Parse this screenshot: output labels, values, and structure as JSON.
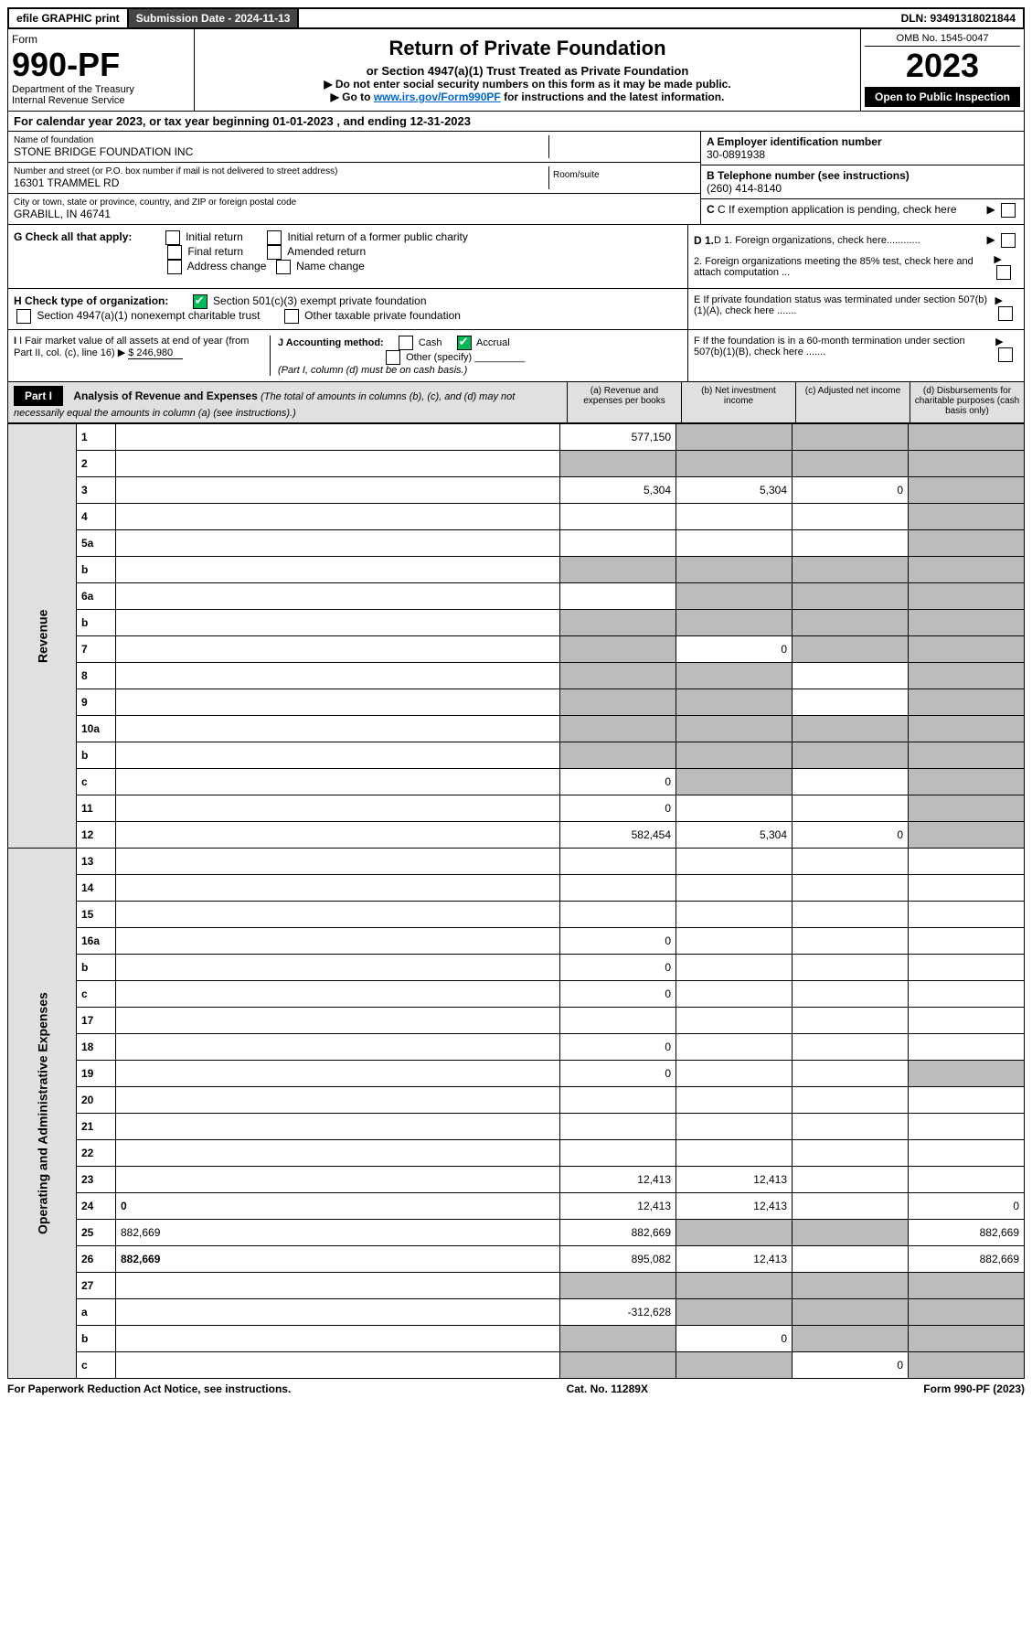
{
  "topbar": {
    "efile": "efile GRAPHIC print",
    "submission_label": "Submission Date - 2024-11-13",
    "dln": "DLN: 93491318021844"
  },
  "formhead": {
    "form_word": "Form",
    "form_number": "990-PF",
    "dept": "Department of the Treasury",
    "irs": "Internal Revenue Service",
    "title": "Return of Private Foundation",
    "subtitle": "or Section 4947(a)(1) Trust Treated as Private Foundation",
    "note1": "▶ Do not enter social security numbers on this form as it may be made public.",
    "note2_prefix": "▶ Go to ",
    "note2_link": "www.irs.gov/Form990PF",
    "note2_suffix": " for instructions and the latest information.",
    "omb": "OMB No. 1545-0047",
    "year": "2023",
    "open": "Open to Public Inspection"
  },
  "calendar": "For calendar year 2023, or tax year beginning 01-01-2023                                    , and ending 12-31-2023",
  "entity": {
    "name_lbl": "Name of foundation",
    "name": "STONE BRIDGE FOUNDATION INC",
    "addr_lbl": "Number and street (or P.O. box number if mail is not delivered to street address)",
    "addr": "16301 TRAMMEL RD",
    "room_lbl": "Room/suite",
    "city_lbl": "City or town, state or province, country, and ZIP or foreign postal code",
    "city": "GRABILL, IN  46741",
    "a_lbl": "A Employer identification number",
    "a_val": "30-0891938",
    "b_lbl": "B Telephone number (see instructions)",
    "b_val": "(260) 414-8140",
    "c_lbl": "C If exemption application is pending, check here"
  },
  "checks": {
    "g_lbl": "G Check all that apply:",
    "g_items": [
      "Initial return",
      "Initial return of a former public charity",
      "Final return",
      "Amended return",
      "Address change",
      "Name change"
    ],
    "h_lbl": "H Check type of organization:",
    "h_501c3": "Section 501(c)(3) exempt private foundation",
    "h_4947": "Section 4947(a)(1) nonexempt charitable trust",
    "h_other": "Other taxable private foundation",
    "i_lbl": "I Fair market value of all assets at end of year (from Part II, col. (c), line 16)",
    "i_val": "$  246,980",
    "j_lbl": "J Accounting method:",
    "j_cash": "Cash",
    "j_accrual": "Accrual",
    "j_other": "Other (specify)",
    "j_note": "(Part I, column (d) must be on cash basis.)",
    "d1": "D 1. Foreign organizations, check here............",
    "d2": "2. Foreign organizations meeting the 85% test, check here and attach computation ...",
    "e": "E  If private foundation status was terminated under section 507(b)(1)(A), check here .......",
    "f": "F  If the foundation is in a 60-month termination under section 507(b)(1)(B), check here .......",
    "d_arrow": "▶"
  },
  "part1": {
    "label": "Part I",
    "title": "Analysis of Revenue and Expenses",
    "title_note": " (The total of amounts in columns (b), (c), and (d) may not necessarily equal the amounts in column (a) (see instructions).)",
    "col_a": "(a)   Revenue and expenses per books",
    "col_b": "(b)   Net investment income",
    "col_c": "(c)   Adjusted net income",
    "col_d": "(d)   Disbursements for charitable purposes (cash basis only)"
  },
  "side_labels": {
    "revenue": "Revenue",
    "expenses": "Operating and Administrative Expenses"
  },
  "rows": [
    {
      "n": "1",
      "d": "",
      "a": "577,150",
      "b": "",
      "c": "",
      "grey": [
        "b",
        "c",
        "d"
      ]
    },
    {
      "n": "2",
      "d": "",
      "a": "",
      "b": "",
      "c": "",
      "grey": [
        "a",
        "b",
        "c",
        "d"
      ]
    },
    {
      "n": "3",
      "d": "",
      "a": "5,304",
      "b": "5,304",
      "c": "0",
      "grey": [
        "d"
      ]
    },
    {
      "n": "4",
      "d": "",
      "a": "",
      "b": "",
      "c": "",
      "grey": [
        "d"
      ]
    },
    {
      "n": "5a",
      "d": "",
      "a": "",
      "b": "",
      "c": "",
      "grey": [
        "d"
      ]
    },
    {
      "n": "b",
      "d": "",
      "a": "",
      "b": "",
      "c": "",
      "grey": [
        "a",
        "b",
        "c",
        "d"
      ]
    },
    {
      "n": "6a",
      "d": "",
      "a": "",
      "b": "",
      "c": "",
      "grey": [
        "b",
        "c",
        "d"
      ]
    },
    {
      "n": "b",
      "d": "",
      "a": "",
      "b": "",
      "c": "",
      "grey": [
        "a",
        "b",
        "c",
        "d"
      ]
    },
    {
      "n": "7",
      "d": "",
      "a": "",
      "b": "0",
      "c": "",
      "grey": [
        "a",
        "c",
        "d"
      ]
    },
    {
      "n": "8",
      "d": "",
      "a": "",
      "b": "",
      "c": "",
      "grey": [
        "a",
        "b",
        "d"
      ]
    },
    {
      "n": "9",
      "d": "",
      "a": "",
      "b": "",
      "c": "",
      "grey": [
        "a",
        "b",
        "d"
      ]
    },
    {
      "n": "10a",
      "d": "",
      "a": "",
      "b": "",
      "c": "",
      "grey": [
        "a",
        "b",
        "c",
        "d"
      ]
    },
    {
      "n": "b",
      "d": "",
      "a": "",
      "b": "",
      "c": "",
      "grey": [
        "a",
        "b",
        "c",
        "d"
      ]
    },
    {
      "n": "c",
      "d": "",
      "a": "0",
      "b": "",
      "c": "",
      "grey": [
        "b",
        "d"
      ]
    },
    {
      "n": "11",
      "d": "",
      "a": "0",
      "b": "",
      "c": "",
      "grey": [
        "d"
      ]
    },
    {
      "n": "12",
      "d": "",
      "a": "582,454",
      "b": "5,304",
      "c": "0",
      "grey": [
        "d"
      ],
      "bold": true
    },
    {
      "n": "13",
      "d": "",
      "a": "",
      "b": "",
      "c": ""
    },
    {
      "n": "14",
      "d": "",
      "a": "",
      "b": "",
      "c": ""
    },
    {
      "n": "15",
      "d": "",
      "a": "",
      "b": "",
      "c": ""
    },
    {
      "n": "16a",
      "d": "",
      "a": "0",
      "b": "",
      "c": ""
    },
    {
      "n": "b",
      "d": "",
      "a": "0",
      "b": "",
      "c": ""
    },
    {
      "n": "c",
      "d": "",
      "a": "0",
      "b": "",
      "c": ""
    },
    {
      "n": "17",
      "d": "",
      "a": "",
      "b": "",
      "c": ""
    },
    {
      "n": "18",
      "d": "",
      "a": "0",
      "b": "",
      "c": ""
    },
    {
      "n": "19",
      "d": "",
      "a": "0",
      "b": "",
      "c": "",
      "grey": [
        "d"
      ]
    },
    {
      "n": "20",
      "d": "",
      "a": "",
      "b": "",
      "c": ""
    },
    {
      "n": "21",
      "d": "",
      "a": "",
      "b": "",
      "c": ""
    },
    {
      "n": "22",
      "d": "",
      "a": "",
      "b": "",
      "c": ""
    },
    {
      "n": "23",
      "d": "",
      "a": "12,413",
      "b": "12,413",
      "c": ""
    },
    {
      "n": "24",
      "d": "0",
      "a": "12,413",
      "b": "12,413",
      "c": "",
      "bold": true
    },
    {
      "n": "25",
      "d": "882,669",
      "a": "882,669",
      "b": "",
      "c": "",
      "grey": [
        "b",
        "c"
      ]
    },
    {
      "n": "26",
      "d": "882,669",
      "a": "895,082",
      "b": "12,413",
      "c": "",
      "bold": true
    },
    {
      "n": "27",
      "d": "",
      "a": "",
      "b": "",
      "c": "",
      "grey": [
        "a",
        "b",
        "c",
        "d"
      ]
    },
    {
      "n": "a",
      "d": "",
      "a": "-312,628",
      "b": "",
      "c": "",
      "grey": [
        "b",
        "c",
        "d"
      ],
      "bold": true
    },
    {
      "n": "b",
      "d": "",
      "a": "",
      "b": "0",
      "c": "",
      "grey": [
        "a",
        "c",
        "d"
      ],
      "bold": true
    },
    {
      "n": "c",
      "d": "",
      "a": "",
      "b": "",
      "c": "0",
      "grey": [
        "a",
        "b",
        "d"
      ],
      "bold": true
    }
  ],
  "footer": {
    "left": "For Paperwork Reduction Act Notice, see instructions.",
    "center": "Cat. No. 11289X",
    "right": "Form 990-PF (2023)"
  },
  "colors": {
    "header_bg": "#000000",
    "grey_bg": "#bcbcbc",
    "light_bg": "#e0e0e0",
    "link": "#0066cc"
  }
}
